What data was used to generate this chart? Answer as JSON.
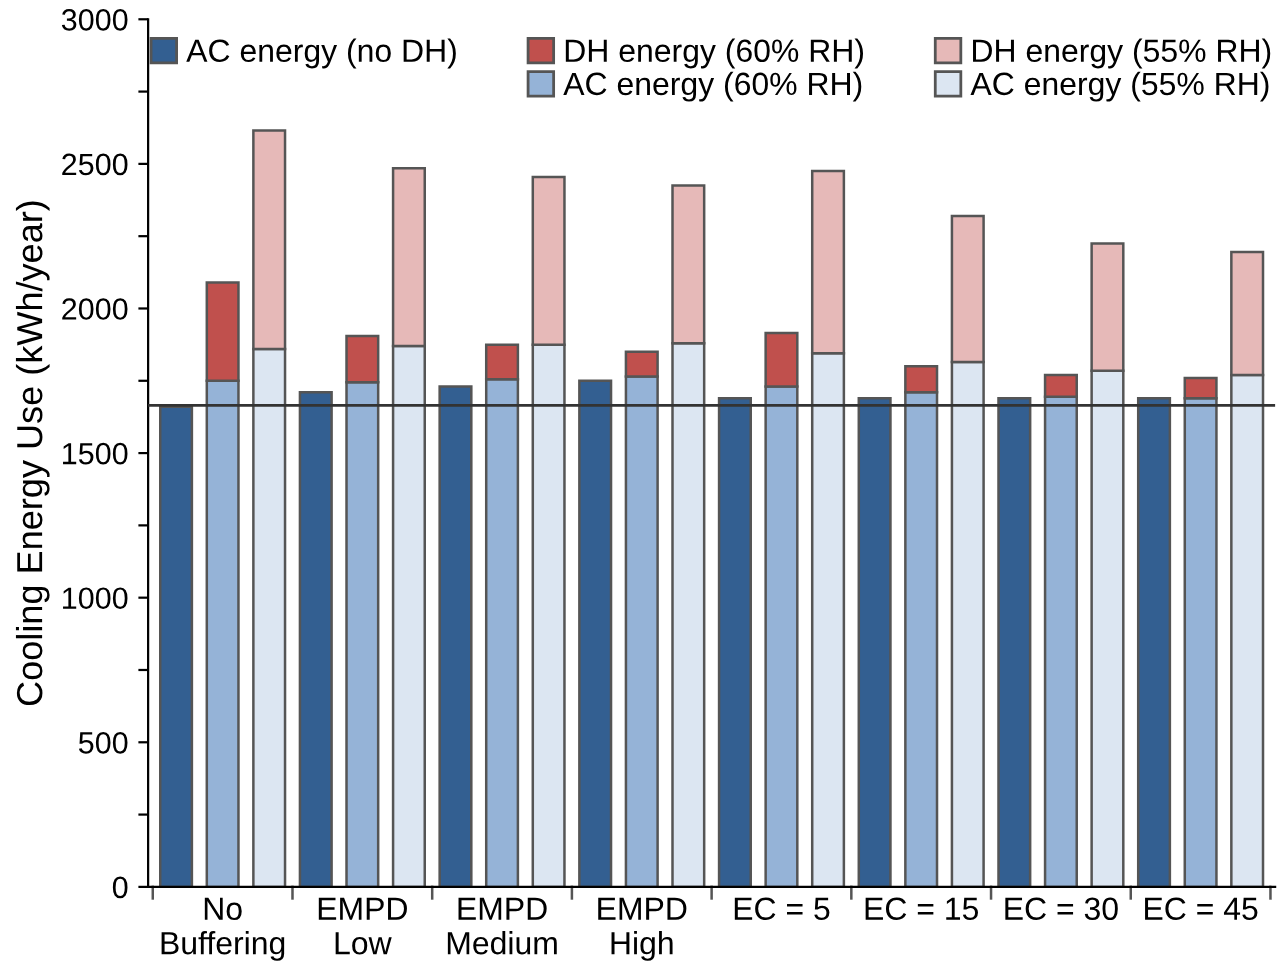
{
  "chart_data": {
    "type": "bar",
    "stacked": true,
    "ylabel": "Cooling Energy Use (kWh/year)",
    "categories": [
      null,
      "No\nBuffering",
      null,
      null,
      "EMPD\nLow",
      null,
      null,
      "EMPD\nMedium",
      null,
      null,
      "EMPD\nHigh",
      null,
      null,
      "EC = 5",
      null,
      null,
      "EC = 15",
      null,
      null,
      "EC = 30",
      null,
      null,
      "EC = 45",
      null
    ],
    "series": [
      {
        "name": "AC energy (no DH)",
        "color": "#335f91",
        "values": [
          1660,
          null,
          null,
          1710,
          null,
          null,
          1730,
          null,
          null,
          1750,
          null,
          null,
          1690,
          null,
          null,
          1690,
          null,
          null,
          1690,
          null,
          null,
          1690,
          null,
          null
        ]
      },
      {
        "name": "AC energy (60% RH)",
        "color": "#95b3d7",
        "values": [
          null,
          1750,
          null,
          null,
          1745,
          null,
          null,
          1755,
          null,
          null,
          1765,
          null,
          null,
          1730,
          null,
          null,
          1710,
          null,
          null,
          1695,
          null,
          null,
          1690,
          null
        ]
      },
      {
        "name": "DH energy (60% RH)",
        "color": "#c0504d",
        "values": [
          null,
          340,
          null,
          null,
          160,
          null,
          null,
          120,
          null,
          null,
          85,
          null,
          null,
          185,
          null,
          null,
          90,
          null,
          null,
          75,
          null,
          null,
          70,
          null
        ]
      },
      {
        "name": "AC energy (55% RH)",
        "color": "#dce6f2",
        "values": [
          null,
          null,
          1860,
          null,
          null,
          1870,
          null,
          null,
          1875,
          null,
          null,
          1880,
          null,
          null,
          1845,
          null,
          null,
          1815,
          null,
          null,
          1785,
          null,
          null,
          1770
        ]
      },
      {
        "name": "DH energy (55% RH)",
        "color": "#e6b9b8",
        "values": [
          null,
          null,
          755,
          null,
          null,
          615,
          null,
          null,
          580,
          null,
          null,
          545,
          null,
          null,
          630,
          null,
          null,
          505,
          null,
          null,
          440,
          null,
          null,
          425
        ]
      }
    ],
    "ylim": [
      0,
      3000
    ],
    "yticks": [
      0,
      {
        "value": 250,
        "label": null
      },
      500,
      {
        "value": 750,
        "label": null
      },
      1000,
      {
        "value": 1250,
        "label": null
      },
      1500,
      {
        "value": 1750,
        "label": null
      },
      2000,
      {
        "value": 2250,
        "label": null
      },
      2500,
      {
        "value": 2750,
        "label": null
      },
      3000
    ],
    "ref_lines": [
      {
        "axis": "y",
        "value": 1665,
        "color": "#333333"
      }
    ],
    "legend": "top",
    "grid": false
  }
}
